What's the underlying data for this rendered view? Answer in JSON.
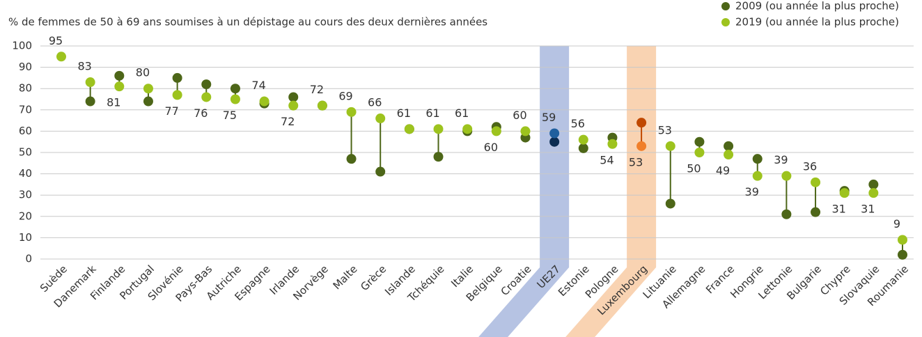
{
  "chart_data": {
    "type": "dumbbell",
    "title": "% de femmes de 50 à 69 ans soumises à un dépistage au cours des deux dernières années",
    "categories": [
      "Suède",
      "Danemark",
      "Finlande",
      "Portugal",
      "Slovénie",
      "Pays-Bas",
      "Autriche",
      "Espagne",
      "Irlande",
      "Norvège",
      "Malte",
      "Grèce",
      "Islande",
      "Tchéquie",
      "Italie",
      "Belgique",
      "Croatie",
      "UE27",
      "Estonie",
      "Pologne",
      "Luxembourg",
      "Lituanie",
      "Allemagne",
      "France",
      "Hongrie",
      "Lettonie",
      "Bulgarie",
      "Chypre",
      "Slovaquie",
      "Roumanie"
    ],
    "series": [
      {
        "name": "2009 (ou année la plus proche)",
        "color": "#4d6618",
        "values": [
          null,
          74,
          86,
          74,
          85,
          82,
          80,
          73,
          76,
          72,
          47,
          41,
          61,
          48,
          60,
          62,
          57,
          55,
          52,
          57,
          64,
          26,
          55,
          53,
          47,
          21,
          22,
          32,
          35,
          2
        ]
      },
      {
        "name": "2019 (ou année la plus proche)",
        "color": "#9dc31e",
        "values": [
          95,
          83,
          81,
          80,
          77,
          76,
          75,
          74,
          72,
          72,
          69,
          66,
          61,
          61,
          61,
          60,
          60,
          59,
          56,
          54,
          53,
          53,
          50,
          49,
          39,
          39,
          36,
          31,
          31,
          9
        ]
      }
    ],
    "highlights": [
      {
        "category": "UE27",
        "band_color": "#b6c3e3",
        "colors": [
          "#0b2c52",
          "#1f5f9e"
        ]
      },
      {
        "category": "Luxembourg",
        "band_color": "#f9d3b2",
        "colors": [
          "#c04800",
          "#f07f2b"
        ]
      }
    ],
    "ylim": [
      0,
      100
    ],
    "yticks": [
      0,
      10,
      20,
      30,
      40,
      50,
      60,
      70,
      80,
      90,
      100
    ],
    "grid": true
  }
}
